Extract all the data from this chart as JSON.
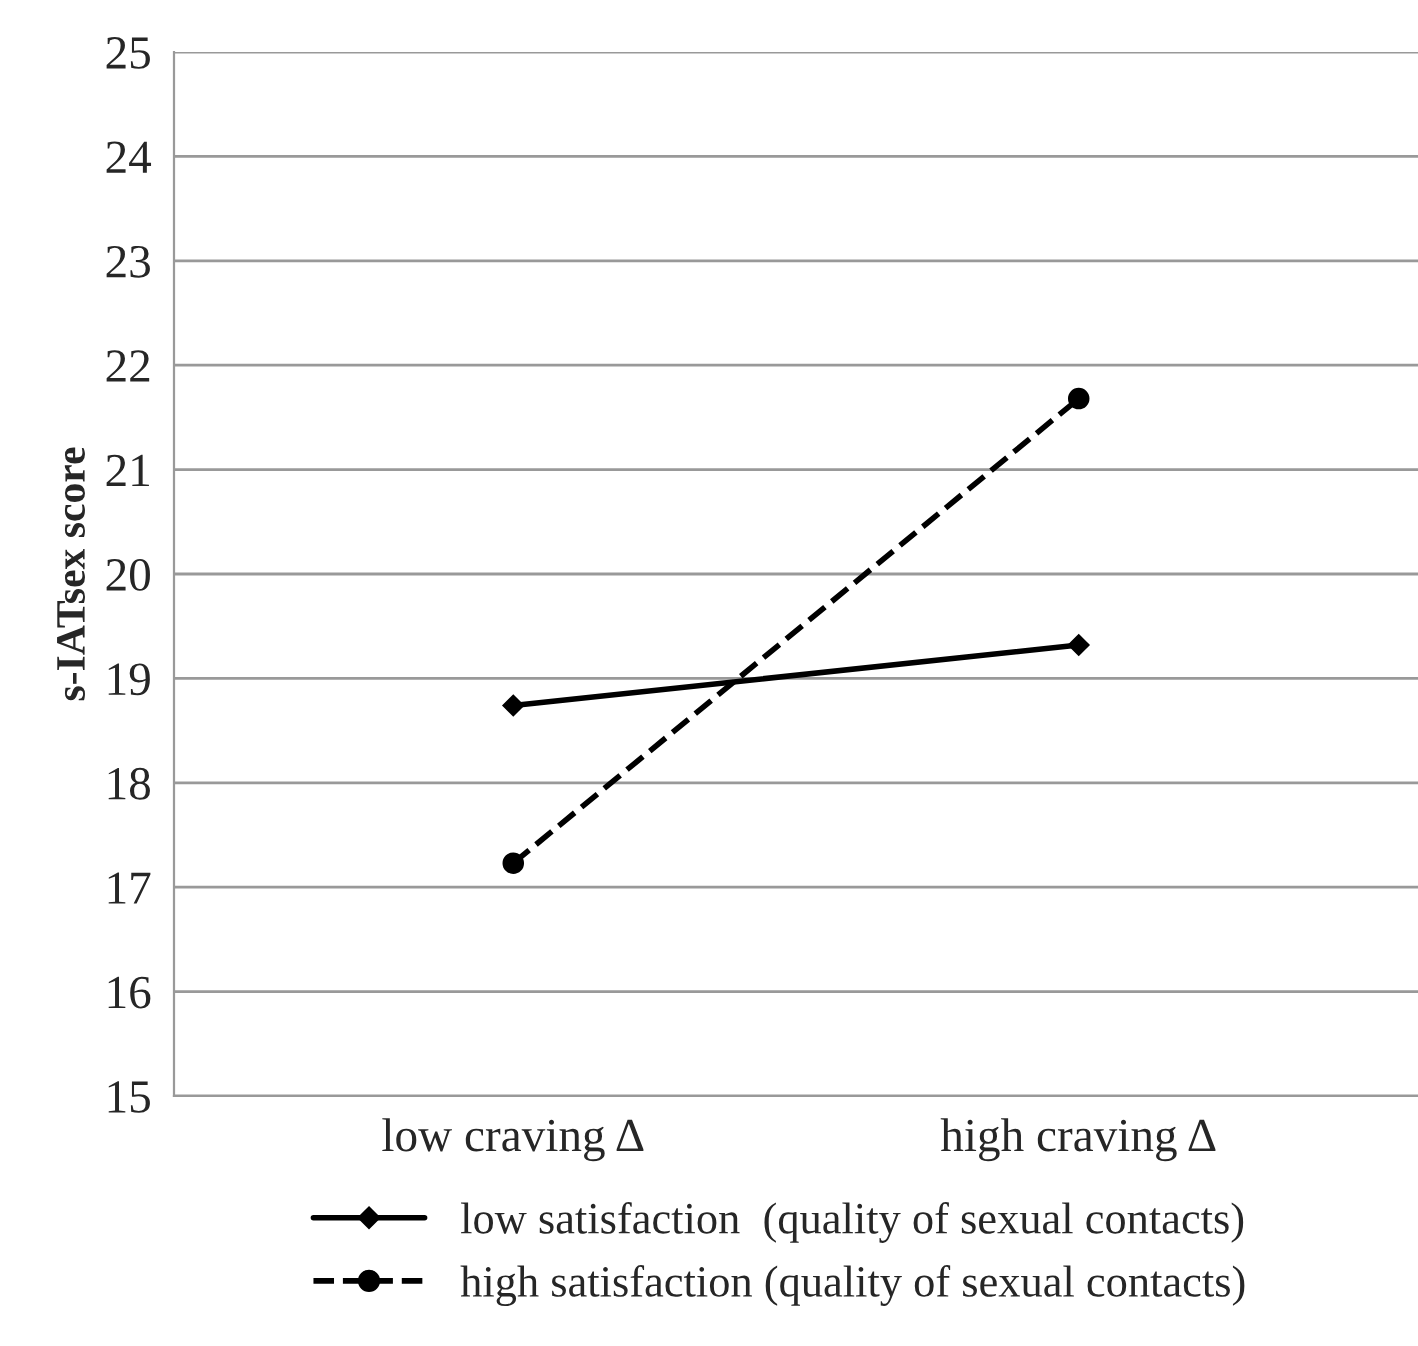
{
  "chart_data": {
    "type": "line",
    "ylabel": "s-IATsex score",
    "categories": [
      "low craving Δ",
      "high craving Δ"
    ],
    "series": [
      {
        "name": "low satisfaction  (quality of sexual contacts)",
        "color": "#000000",
        "values": [
          18.74,
          19.32
        ],
        "marker": "diamond",
        "line_style": "solid"
      },
      {
        "name": "high satisfaction (quality of sexual contacts)",
        "color": "#000000",
        "values": [
          17.23,
          21.68
        ],
        "marker": "circle",
        "line_style": "dashed"
      }
    ],
    "ylim": [
      15,
      25
    ],
    "yticks": [
      15,
      16,
      17,
      18,
      19,
      20,
      21,
      22,
      23,
      24,
      25
    ],
    "grid": "y",
    "legend": "bottom"
  }
}
